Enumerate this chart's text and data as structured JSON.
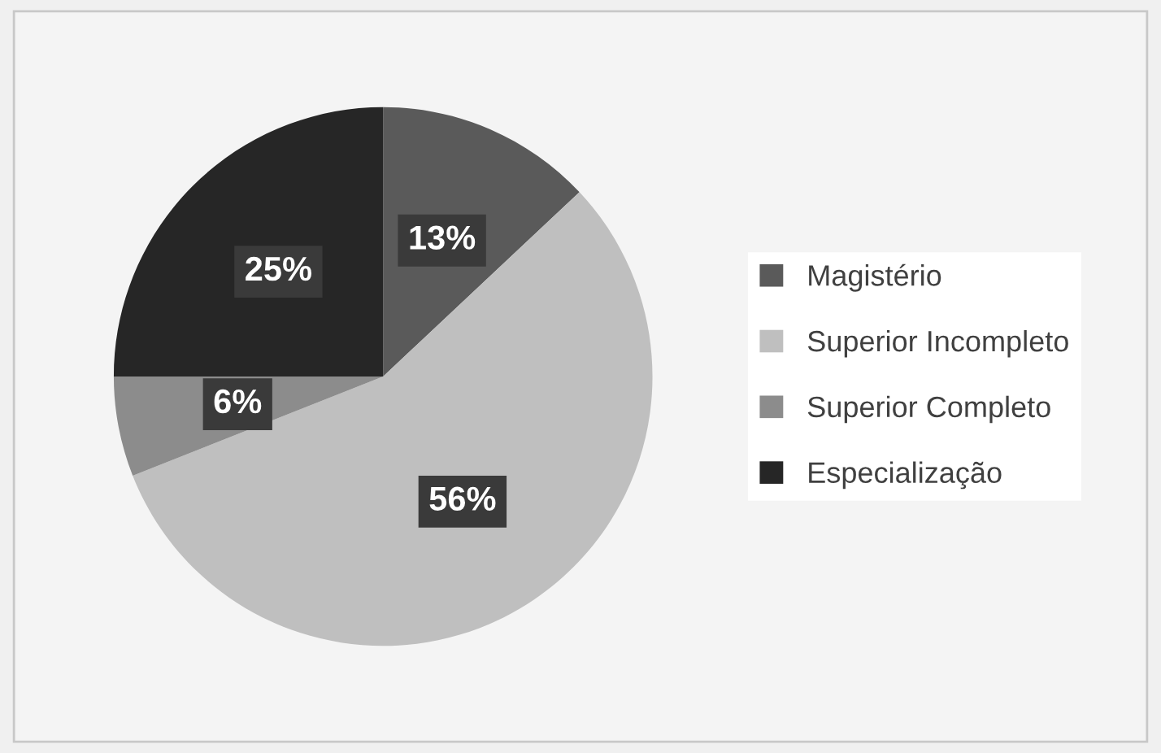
{
  "chart_data": {
    "type": "pie",
    "categories": [
      "Magistério",
      "Superior Incompleto",
      "Superior Completo",
      "Especialização"
    ],
    "values": [
      13,
      56,
      6,
      25
    ],
    "colors": [
      "#5a5a5a",
      "#bfbfbf",
      "#8c8c8c",
      "#262626"
    ],
    "data_labels": true,
    "value_labels": [
      "13%",
      "56%",
      "6%",
      "25%"
    ],
    "legend": "right"
  }
}
